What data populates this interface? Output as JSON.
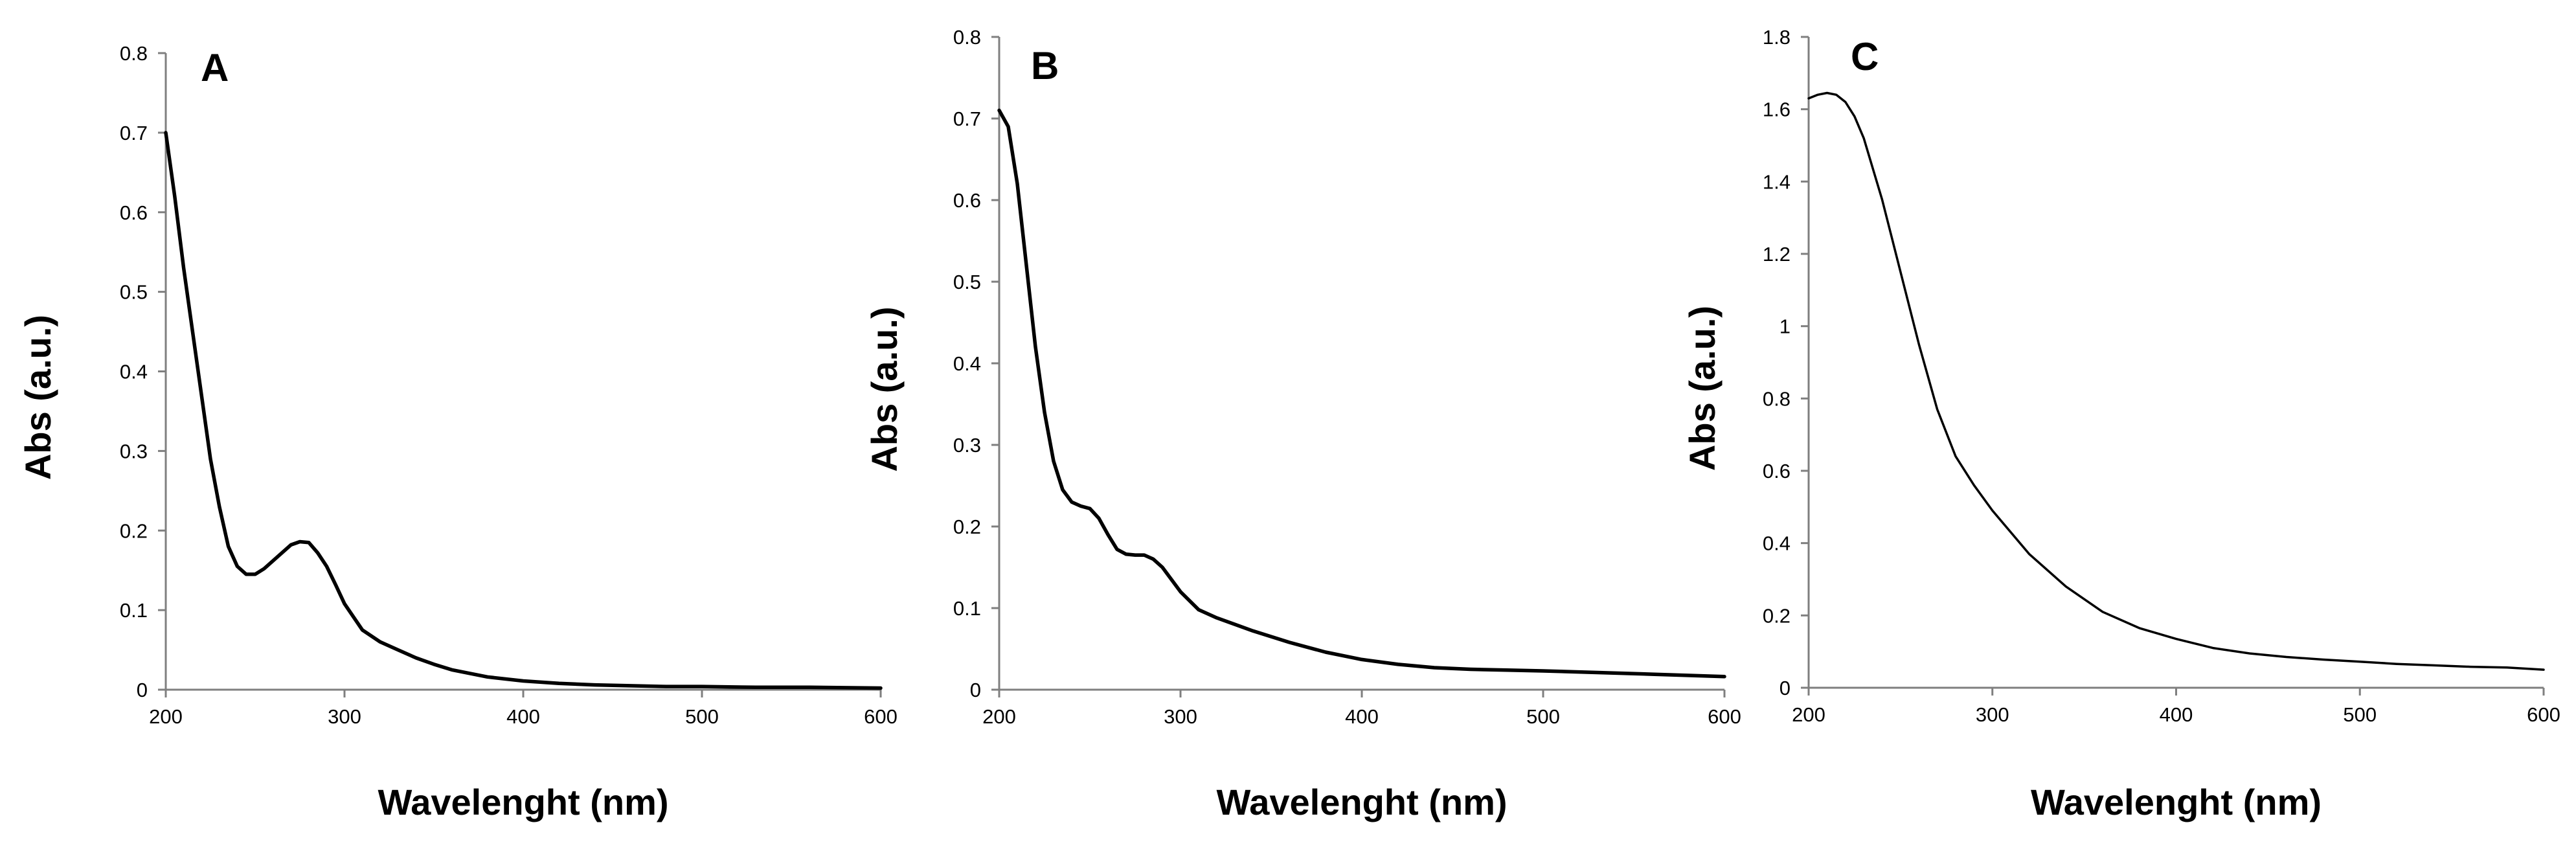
{
  "chart_data": [
    {
      "type": "line",
      "panel_label": "A",
      "xlabel": "Wavelenght (nm)",
      "ylabel": "Abs (a.u.)",
      "xlim": [
        200,
        600
      ],
      "ylim": [
        0,
        0.8
      ],
      "xticks": [
        200,
        300,
        400,
        500,
        600
      ],
      "yticks": [
        0,
        0.1,
        0.2,
        0.3,
        0.4,
        0.5,
        0.6,
        0.7,
        0.8
      ],
      "series": [
        {
          "name": "A",
          "x": [
            200,
            205,
            210,
            215,
            220,
            225,
            230,
            235,
            240,
            245,
            250,
            255,
            260,
            265,
            270,
            275,
            280,
            285,
            290,
            295,
            300,
            310,
            320,
            330,
            340,
            350,
            360,
            380,
            400,
            420,
            440,
            460,
            480,
            500,
            530,
            560,
            600
          ],
          "y": [
            0.7,
            0.62,
            0.53,
            0.45,
            0.37,
            0.29,
            0.23,
            0.18,
            0.155,
            0.145,
            0.145,
            0.152,
            0.162,
            0.172,
            0.182,
            0.186,
            0.185,
            0.172,
            0.155,
            0.132,
            0.108,
            0.075,
            0.06,
            0.05,
            0.04,
            0.032,
            0.025,
            0.016,
            0.011,
            0.008,
            0.006,
            0.005,
            0.004,
            0.004,
            0.003,
            0.003,
            0.002
          ]
        }
      ]
    },
    {
      "type": "line",
      "panel_label": "B",
      "xlabel": "Wavelenght (nm)",
      "ylabel": "Abs (a.u.)",
      "xlim": [
        200,
        600
      ],
      "ylim": [
        0,
        0.8
      ],
      "xticks": [
        200,
        300,
        400,
        500,
        600
      ],
      "yticks": [
        0,
        0.1,
        0.2,
        0.3,
        0.4,
        0.5,
        0.6,
        0.7,
        0.8
      ],
      "series": [
        {
          "name": "B",
          "x": [
            200,
            205,
            210,
            215,
            220,
            225,
            230,
            235,
            240,
            245,
            250,
            255,
            260,
            265,
            270,
            275,
            280,
            285,
            290,
            295,
            300,
            310,
            320,
            340,
            360,
            380,
            400,
            420,
            440,
            460,
            480,
            500,
            530,
            560,
            600
          ],
          "y": [
            0.71,
            0.69,
            0.62,
            0.52,
            0.42,
            0.34,
            0.28,
            0.245,
            0.23,
            0.225,
            0.222,
            0.21,
            0.19,
            0.172,
            0.166,
            0.165,
            0.165,
            0.16,
            0.15,
            0.135,
            0.12,
            0.098,
            0.088,
            0.072,
            0.058,
            0.046,
            0.037,
            0.031,
            0.027,
            0.025,
            0.024,
            0.023,
            0.021,
            0.019,
            0.016
          ]
        }
      ]
    },
    {
      "type": "line",
      "panel_label": "C",
      "xlabel": "Wavelenght (nm)",
      "ylabel": "Abs (a.u.)",
      "xlim": [
        200,
        600
      ],
      "ylim": [
        0,
        1.8
      ],
      "xticks": [
        200,
        300,
        400,
        500,
        600
      ],
      "yticks": [
        0,
        0.2,
        0.4,
        0.6,
        0.8,
        1,
        1.2,
        1.4,
        1.6,
        1.8
      ],
      "series": [
        {
          "name": "C",
          "x": [
            200,
            205,
            210,
            215,
            220,
            225,
            230,
            240,
            250,
            260,
            270,
            280,
            290,
            300,
            320,
            340,
            360,
            380,
            400,
            420,
            440,
            460,
            480,
            500,
            520,
            540,
            560,
            580,
            600
          ],
          "y": [
            1.63,
            1.64,
            1.645,
            1.64,
            1.62,
            1.58,
            1.52,
            1.35,
            1.15,
            0.95,
            0.77,
            0.64,
            0.56,
            0.49,
            0.37,
            0.28,
            0.21,
            0.165,
            0.135,
            0.11,
            0.095,
            0.085,
            0.078,
            0.072,
            0.066,
            0.062,
            0.058,
            0.056,
            0.05
          ]
        }
      ]
    }
  ]
}
